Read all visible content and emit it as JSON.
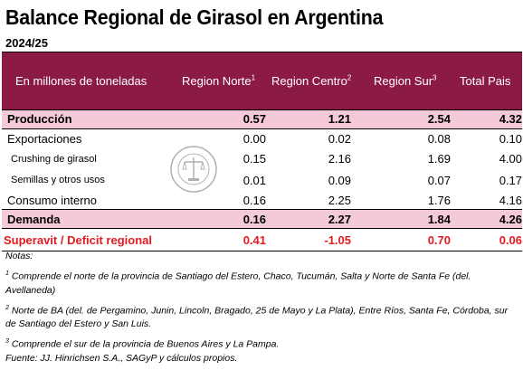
{
  "title": "Balance Regional de Girasol en Argentina",
  "subtitle": "2024/25",
  "header": {
    "unit_label": "En millones de toneladas",
    "col1": "Region Norte",
    "col1_sup": "1",
    "col2": "Region Centro",
    "col2_sup": "2",
    "col3": "Region Sur",
    "col3_sup": "3",
    "col4": "Total Pais"
  },
  "rows": [
    {
      "label": "Producción",
      "v": [
        "0.57",
        "1.21",
        "2.54",
        "4.32"
      ]
    },
    {
      "label": "Exportaciones",
      "v": [
        "0.00",
        "0.02",
        "0.08",
        "0.10"
      ]
    },
    {
      "label": "Crushing de girasol",
      "v": [
        "0.15",
        "2.16",
        "1.69",
        "4.00"
      ]
    },
    {
      "label": "Semillas y otros usos",
      "v": [
        "0.01",
        "0.09",
        "0.07",
        "0.17"
      ]
    },
    {
      "label": "Consumo interno",
      "v": [
        "0.16",
        "2.25",
        "1.76",
        "4.16"
      ]
    },
    {
      "label": "Demanda",
      "v": [
        "0.16",
        "2.27",
        "1.84",
        "4.26"
      ]
    },
    {
      "label": "Superavit / Deficit regional",
      "v": [
        "0.41",
        "-1.05",
        "0.70",
        "0.06"
      ]
    }
  ],
  "notes": {
    "heading": "Notas:",
    "n1_sup": "1",
    "n1": "Comprende el norte de la provincia de Santiago del Estero, Chaco, Tucumán, Salta y Norte de Santa Fe (del. Avellaneda)",
    "n2_sup": "2",
    "n2": "Norte de BA (del. de Pergamino, Junin, Lincoln, Bragado, 25 de Mayo y La Plata), Entre Ríos, Santa Fe, Córdoba, sur de Santiago del Estero y San Luis.",
    "n3_sup": "3",
    "n3": "Comprende el sur de la provincia de Buenos Aires y La Pampa.",
    "source": "Fuente: JJ. Hinrichsen S.A., SAGyP y cálculos propios."
  },
  "colors": {
    "header_bg": "#8b1a47",
    "highlight_bg": "#f4c9d9",
    "deficit_text": "#e21b23"
  },
  "watermark_icon": "bolsa-de-comercio-seal-icon"
}
